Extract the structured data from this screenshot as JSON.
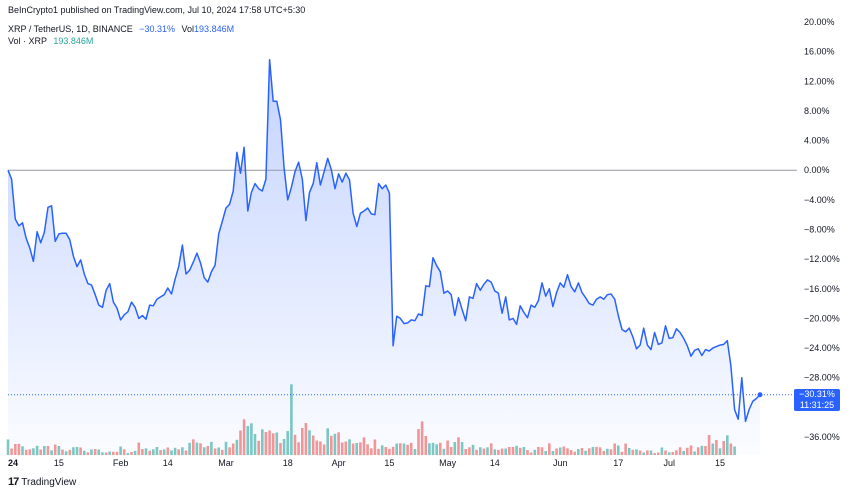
{
  "header": {
    "published": "BeInCrypto1 published on TradingView.com, Jul 10, 2024 17:58 UTC+5:30",
    "symbol": "XRP / TetherUS, 1D, BINANCE",
    "change": "−30.31%",
    "vol_label": "Vol",
    "vol_value": "193.846M",
    "vol_series_label": "Vol · XRP",
    "vol_series_value": "193.846M"
  },
  "footer": {
    "brand": "TradingView",
    "logo": "17"
  },
  "last_tag": {
    "percent": "−30.31%",
    "countdown": "11:31:25"
  },
  "colors": {
    "line": "#2962ff",
    "fill": "#2962ff",
    "vol_up": "#26a69a",
    "vol_down": "#ef5350",
    "zero": "#9598a1"
  },
  "chart_data": {
    "type": "area",
    "ylabel": "",
    "ylim": [
      -38,
      22
    ],
    "y_ticks": [
      "20.00%",
      "16.00%",
      "12.00%",
      "8.00%",
      "4.00%",
      "0.00%",
      "−4.00%",
      "−8.00%",
      "−12.00%",
      "−16.00%",
      "−20.00%",
      "−24.00%",
      "−28.00%",
      "−32.00%",
      "−36.00%"
    ],
    "y_tick_values": [
      20,
      16,
      12,
      8,
      4,
      0,
      -4,
      -8,
      -12,
      -16,
      -20,
      -24,
      -28,
      -32,
      -36
    ],
    "x_ticks": [
      {
        "label": "24",
        "day": 0,
        "bold": true
      },
      {
        "label": "15",
        "day": 14
      },
      {
        "label": "Feb",
        "day": 31
      },
      {
        "label": "14",
        "day": 44
      },
      {
        "label": "Mar",
        "day": 60
      },
      {
        "label": "18",
        "day": 77
      },
      {
        "label": "Apr",
        "day": 91
      },
      {
        "label": "15",
        "day": 105
      },
      {
        "label": "May",
        "day": 121
      },
      {
        "label": "14",
        "day": 134
      },
      {
        "label": "Jun",
        "day": 152
      },
      {
        "label": "17",
        "day": 168
      },
      {
        "label": "Jul",
        "day": 182
      },
      {
        "label": "15",
        "day": 196
      }
    ],
    "series": [
      {
        "values": [
          0.0,
          -1.2,
          -6.6,
          -7.5,
          -7.1,
          -9.2,
          -10.5,
          -12.3,
          -8.3,
          -9.8,
          -8.4,
          -5.0,
          -4.8,
          -9.6,
          -8.6,
          -8.5,
          -8.5,
          -9.4,
          -11.6,
          -13.0,
          -12.1,
          -14.0,
          -15.3,
          -15.5,
          -16.8,
          -18.2,
          -18.5,
          -16.2,
          -15.3,
          -17.8,
          -18.6,
          -20.2,
          -19.5,
          -19.1,
          -17.8,
          -18.5,
          -20.0,
          -19.6,
          -20.1,
          -18.2,
          -18.3,
          -17.4,
          -17.1,
          -16.8,
          -15.9,
          -16.7,
          -14.7,
          -13.0,
          -10.1,
          -14.0,
          -13.5,
          -12.4,
          -11.2,
          -12.5,
          -14.5,
          -15.1,
          -13.7,
          -12.8,
          -8.6,
          -6.9,
          -5.1,
          -4.6,
          -2.8,
          2.4,
          -0.4,
          3.1,
          -5.5,
          -3.0,
          -1.8,
          -2.5,
          -2.8,
          -1.2,
          14.9,
          9.3,
          9.3,
          6.8,
          0.3,
          -4.0,
          -2.3,
          -0.2,
          1.1,
          -1.2,
          -6.8,
          -3.0,
          -1.8,
          1.0,
          -2.0,
          -0.2,
          1.6,
          0.1,
          -2.5,
          -0.5,
          -1.6,
          -0.4,
          -1.3,
          -5.8,
          -7.6,
          -5.8,
          -5.5,
          -5.1,
          -5.9,
          -6.0,
          -1.8,
          -2.5,
          -2.0,
          -3.1,
          -23.7,
          -19.7,
          -20.0,
          -20.7,
          -20.6,
          -20.2,
          -20.3,
          -19.4,
          -19.6,
          -15.6,
          -15.7,
          -11.8,
          -12.9,
          -13.7,
          -16.6,
          -16.3,
          -16.8,
          -19.6,
          -17.2,
          -18.8,
          -20.3,
          -17.1,
          -17.3,
          -15.3,
          -16.2,
          -15.4,
          -14.8,
          -15.1,
          -16.3,
          -16.6,
          -19.3,
          -17.1,
          -20.2,
          -20.0,
          -20.8,
          -18.3,
          -19.2,
          -19.9,
          -18.2,
          -18.5,
          -17.6,
          -15.2,
          -17.0,
          -16.0,
          -18.4,
          -16.5,
          -15.2,
          -15.8,
          -14.1,
          -15.7,
          -16.4,
          -15.2,
          -16.5,
          -17.2,
          -18.0,
          -18.2,
          -17.4,
          -17.1,
          -17.4,
          -16.8,
          -16.7,
          -17.4,
          -19.6,
          -21.5,
          -21.8,
          -21.3,
          -22.5,
          -24.1,
          -23.6,
          -21.3,
          -23.6,
          -24.2,
          -21.9,
          -23.5,
          -23.3,
          -21.0,
          -22.7,
          -22.6,
          -21.4,
          -21.9,
          -22.7,
          -23.7,
          -25.1,
          -24.3,
          -24.1,
          -25.0,
          -24.2,
          -24.4,
          -24.0,
          -23.8,
          -23.6,
          -23.5,
          -23.0,
          -26.4,
          -32.3,
          -33.6,
          -28.0,
          -33.9,
          -32.3,
          -31.2,
          -30.8,
          -30.3
        ]
      }
    ],
    "volume": [
      {
        "v": 6.2,
        "up": true
      },
      {
        "v": 2.6,
        "up": false
      },
      {
        "v": 4.4,
        "up": false
      },
      {
        "v": 4.5,
        "up": false
      },
      {
        "v": 3.5,
        "up": true
      },
      {
        "v": 2.1,
        "up": false
      },
      {
        "v": 2.3,
        "up": false
      },
      {
        "v": 2.7,
        "up": true
      },
      {
        "v": 3.7,
        "up": true
      },
      {
        "v": 2.2,
        "up": false
      },
      {
        "v": 3.6,
        "up": true
      },
      {
        "v": 3.6,
        "up": false
      },
      {
        "v": 1.9,
        "up": true
      },
      {
        "v": 4.2,
        "up": false
      },
      {
        "v": 3.6,
        "up": true
      },
      {
        "v": 2.2,
        "up": false
      },
      {
        "v": 1.5,
        "up": true
      },
      {
        "v": 2.1,
        "up": false
      },
      {
        "v": 3.1,
        "up": true
      },
      {
        "v": 3.2,
        "up": true
      },
      {
        "v": 3.0,
        "up": false
      },
      {
        "v": 1.7,
        "up": true
      },
      {
        "v": 1.1,
        "up": false
      },
      {
        "v": 2.2,
        "up": true
      },
      {
        "v": 2.4,
        "up": false
      },
      {
        "v": 2.2,
        "up": true
      },
      {
        "v": 1.1,
        "up": true
      },
      {
        "v": 1.0,
        "up": false
      },
      {
        "v": 1.4,
        "up": true
      },
      {
        "v": 1.3,
        "up": false
      },
      {
        "v": 1.3,
        "up": false
      },
      {
        "v": 3.4,
        "up": true
      },
      {
        "v": 2.3,
        "up": false
      },
      {
        "v": 0.8,
        "up": true
      },
      {
        "v": 1.2,
        "up": false
      },
      {
        "v": 1.7,
        "up": true
      },
      {
        "v": 5.0,
        "up": false
      },
      {
        "v": 2.4,
        "up": false
      },
      {
        "v": 2.7,
        "up": true
      },
      {
        "v": 1.7,
        "up": false
      },
      {
        "v": 2.3,
        "up": true
      },
      {
        "v": 3.2,
        "up": true
      },
      {
        "v": 2.0,
        "up": false
      },
      {
        "v": 2.2,
        "up": true
      },
      {
        "v": 3.0,
        "up": false
      },
      {
        "v": 1.8,
        "up": true
      },
      {
        "v": 2.9,
        "up": true
      },
      {
        "v": 2.3,
        "up": false
      },
      {
        "v": 3.1,
        "up": true
      },
      {
        "v": 1.8,
        "up": false
      },
      {
        "v": 4.9,
        "up": true
      },
      {
        "v": 6.3,
        "up": false
      },
      {
        "v": 5.0,
        "up": true
      },
      {
        "v": 4.7,
        "up": false
      },
      {
        "v": 3.1,
        "up": true
      },
      {
        "v": 3.6,
        "up": false
      },
      {
        "v": 5.3,
        "up": true
      },
      {
        "v": 2.6,
        "up": false
      },
      {
        "v": 3.0,
        "up": true
      },
      {
        "v": 2.1,
        "up": false
      },
      {
        "v": 5.3,
        "up": true
      },
      {
        "v": 3.1,
        "up": false
      },
      {
        "v": 4.6,
        "up": false
      },
      {
        "v": 6.1,
        "up": true
      },
      {
        "v": 9.8,
        "up": false
      },
      {
        "v": 14.3,
        "up": false
      },
      {
        "v": 11.6,
        "up": true
      },
      {
        "v": 12.7,
        "up": true
      },
      {
        "v": 8.4,
        "up": true
      },
      {
        "v": 5.7,
        "up": false
      },
      {
        "v": 10.3,
        "up": true
      },
      {
        "v": 9.2,
        "up": false
      },
      {
        "v": 9.8,
        "up": false
      },
      {
        "v": 8.7,
        "up": false
      },
      {
        "v": 9.0,
        "up": true
      },
      {
        "v": 4.8,
        "up": false
      },
      {
        "v": 6.4,
        "up": true
      },
      {
        "v": 9.6,
        "up": true
      },
      {
        "v": 28.3,
        "up": true
      },
      {
        "v": 8.1,
        "up": false
      },
      {
        "v": 5.1,
        "up": false
      },
      {
        "v": 10.8,
        "up": false
      },
      {
        "v": 12.8,
        "up": false
      },
      {
        "v": 9.9,
        "up": true
      },
      {
        "v": 7.8,
        "up": false
      },
      {
        "v": 5.8,
        "up": false
      },
      {
        "v": 5.4,
        "up": false
      },
      {
        "v": 4.2,
        "up": false
      },
      {
        "v": 10.7,
        "up": true
      },
      {
        "v": 7.7,
        "up": false
      },
      {
        "v": 8.5,
        "up": true
      },
      {
        "v": 9.1,
        "up": false
      },
      {
        "v": 5.0,
        "up": false
      },
      {
        "v": 5.4,
        "up": false
      },
      {
        "v": 6.3,
        "up": true
      },
      {
        "v": 4.6,
        "up": false
      },
      {
        "v": 4.8,
        "up": true
      },
      {
        "v": 5.1,
        "up": false
      },
      {
        "v": 7.1,
        "up": false
      },
      {
        "v": 4.3,
        "up": false
      },
      {
        "v": 2.7,
        "up": false
      },
      {
        "v": 6.2,
        "up": false
      },
      {
        "v": 2.5,
        "up": false
      },
      {
        "v": 3.9,
        "up": true
      },
      {
        "v": 3.2,
        "up": false
      },
      {
        "v": 2.5,
        "up": false
      },
      {
        "v": 3.3,
        "up": false
      },
      {
        "v": 4.6,
        "up": true
      },
      {
        "v": 4.7,
        "up": false
      },
      {
        "v": 4.6,
        "up": true
      },
      {
        "v": 4.1,
        "up": false
      },
      {
        "v": 4.9,
        "up": false
      },
      {
        "v": 2.4,
        "up": true
      },
      {
        "v": 10.4,
        "up": false
      },
      {
        "v": 13.5,
        "up": false
      },
      {
        "v": 7.6,
        "up": false
      },
      {
        "v": 4.7,
        "up": true
      },
      {
        "v": 4.9,
        "up": true
      },
      {
        "v": 4.3,
        "up": true
      },
      {
        "v": 4.9,
        "up": false
      },
      {
        "v": 2.5,
        "up": true
      },
      {
        "v": 5.8,
        "up": false
      },
      {
        "v": 3.2,
        "up": false
      },
      {
        "v": 5.2,
        "up": true
      },
      {
        "v": 7.1,
        "up": false
      },
      {
        "v": 5.2,
        "up": true
      },
      {
        "v": 2.4,
        "up": false
      },
      {
        "v": 3.1,
        "up": false
      },
      {
        "v": 4.1,
        "up": true
      },
      {
        "v": 2.1,
        "up": false
      },
      {
        "v": 3.1,
        "up": true
      },
      {
        "v": 2.6,
        "up": false
      },
      {
        "v": 3.1,
        "up": true
      },
      {
        "v": 4.7,
        "up": false
      },
      {
        "v": 2.3,
        "up": true
      },
      {
        "v": 2.1,
        "up": false
      },
      {
        "v": 2.6,
        "up": false
      },
      {
        "v": 2.6,
        "up": true
      },
      {
        "v": 3.2,
        "up": false
      },
      {
        "v": 3.2,
        "up": false
      },
      {
        "v": 3.7,
        "up": true
      },
      {
        "v": 2.9,
        "up": false
      },
      {
        "v": 3.2,
        "up": true
      },
      {
        "v": 2.0,
        "up": false
      },
      {
        "v": 1.0,
        "up": false
      },
      {
        "v": 2.1,
        "up": true
      },
      {
        "v": 3.2,
        "up": false
      },
      {
        "v": 3.1,
        "up": false
      },
      {
        "v": 1.6,
        "up": true
      },
      {
        "v": 4.7,
        "up": false
      },
      {
        "v": 1.6,
        "up": true
      },
      {
        "v": 2.6,
        "up": false
      },
      {
        "v": 3.0,
        "up": true
      },
      {
        "v": 3.4,
        "up": false
      },
      {
        "v": 2.7,
        "up": false
      },
      {
        "v": 2.0,
        "up": false
      },
      {
        "v": 1.3,
        "up": false
      },
      {
        "v": 2.4,
        "up": true
      },
      {
        "v": 2.8,
        "up": false
      },
      {
        "v": 1.7,
        "up": true
      },
      {
        "v": 2.7,
        "up": false
      },
      {
        "v": 3.2,
        "up": true
      },
      {
        "v": 3.2,
        "up": false
      },
      {
        "v": 3.1,
        "up": false
      },
      {
        "v": 1.6,
        "up": false
      },
      {
        "v": 2.5,
        "up": true
      },
      {
        "v": 2.3,
        "up": false
      },
      {
        "v": 4.6,
        "up": false
      },
      {
        "v": 3.8,
        "up": true
      },
      {
        "v": 1.3,
        "up": false
      },
      {
        "v": 4.6,
        "up": false
      },
      {
        "v": 2.8,
        "up": true
      },
      {
        "v": 2.1,
        "up": false
      },
      {
        "v": 2.3,
        "up": true
      },
      {
        "v": 1.8,
        "up": false
      },
      {
        "v": 1.0,
        "up": true
      },
      {
        "v": 1.9,
        "up": false
      },
      {
        "v": 1.8,
        "up": true
      },
      {
        "v": 0.8,
        "up": false
      },
      {
        "v": 1.0,
        "up": false
      },
      {
        "v": 3.0,
        "up": true
      },
      {
        "v": 1.8,
        "up": false
      },
      {
        "v": 1.1,
        "up": true
      },
      {
        "v": 1.2,
        "up": false
      },
      {
        "v": 1.9,
        "up": false
      },
      {
        "v": 3.1,
        "up": false
      },
      {
        "v": 1.6,
        "up": true
      },
      {
        "v": 2.9,
        "up": false
      },
      {
        "v": 3.8,
        "up": false
      },
      {
        "v": 1.4,
        "up": true
      },
      {
        "v": 3.1,
        "up": false
      },
      {
        "v": 3.7,
        "up": true
      },
      {
        "v": 3.6,
        "up": false
      },
      {
        "v": 8.0,
        "up": false
      },
      {
        "v": 4.6,
        "up": true
      },
      {
        "v": 6.0,
        "up": false
      },
      {
        "v": 2.7,
        "up": true
      },
      {
        "v": 5.6,
        "up": false
      },
      {
        "v": 7.9,
        "up": true
      },
      {
        "v": 4.6,
        "up": false
      },
      {
        "v": 3.4,
        "up": true
      }
    ],
    "reference_line": 0
  }
}
